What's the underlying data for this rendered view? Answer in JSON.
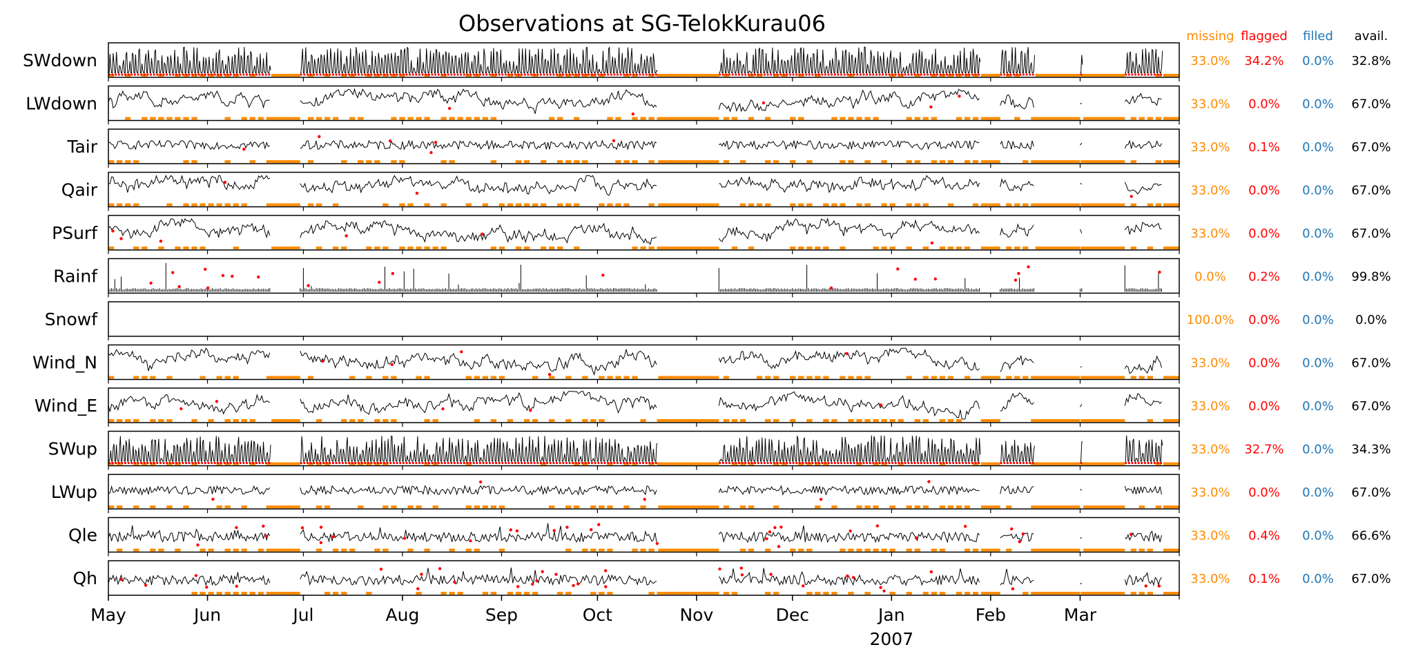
{
  "chart_data": {
    "type": "line",
    "title": "Observations at SG-TelokKurau06",
    "x_axis": {
      "tick_labels": [
        "May",
        "Jun",
        "Jul",
        "Aug",
        "Sep",
        "Oct",
        "Nov",
        "Dec",
        "Jan",
        "Feb",
        "Mar"
      ],
      "year_label": "2007",
      "start": "2006-05-01",
      "end": "2007-04-01"
    },
    "column_headers": {
      "missing": "missing",
      "flagged": "flagged",
      "filled": "filled",
      "avail": "avail."
    },
    "colors": {
      "line": "#000000",
      "missing": "#ff8c00",
      "flagged": "#ff0000",
      "filled": "#1f77b4",
      "avail": "#000000"
    },
    "gaps": [
      {
        "start": "2006-06-21",
        "end": "2006-06-30"
      },
      {
        "start": "2006-10-20",
        "end": "2006-11-08"
      },
      {
        "start": "2007-01-29",
        "end": "2007-02-04"
      },
      {
        "start": "2007-02-15",
        "end": "2007-03-01"
      },
      {
        "start": "2007-03-02",
        "end": "2007-03-15"
      },
      {
        "start": "2007-03-27",
        "end": "2007-04-01"
      }
    ],
    "series": [
      {
        "name": "SWdown",
        "style": "diurnal",
        "missing": "33.0%",
        "flagged": "34.2%",
        "filled": "0.0%",
        "avail": "32.8%"
      },
      {
        "name": "LWdown",
        "style": "noisy",
        "missing": "33.0%",
        "flagged": "0.0%",
        "filled": "0.0%",
        "avail": "67.0%"
      },
      {
        "name": "Tair",
        "style": "oscillating",
        "missing": "33.0%",
        "flagged": "0.1%",
        "filled": "0.0%",
        "avail": "67.0%"
      },
      {
        "name": "Qair",
        "style": "noisy",
        "missing": "33.0%",
        "flagged": "0.0%",
        "filled": "0.0%",
        "avail": "67.0%"
      },
      {
        "name": "PSurf",
        "style": "noisy",
        "missing": "33.0%",
        "flagged": "0.0%",
        "filled": "0.0%",
        "avail": "67.0%"
      },
      {
        "name": "Rainf",
        "style": "rain",
        "missing": "0.0%",
        "flagged": "0.2%",
        "filled": "0.0%",
        "avail": "99.8%"
      },
      {
        "name": "Snowf",
        "style": "empty",
        "missing": "100.0%",
        "flagged": "0.0%",
        "filled": "0.0%",
        "avail": "0.0%"
      },
      {
        "name": "Wind_N",
        "style": "noisy",
        "missing": "33.0%",
        "flagged": "0.0%",
        "filled": "0.0%",
        "avail": "67.0%"
      },
      {
        "name": "Wind_E",
        "style": "noisy",
        "missing": "33.0%",
        "flagged": "0.0%",
        "filled": "0.0%",
        "avail": "67.0%"
      },
      {
        "name": "SWup",
        "style": "diurnal",
        "missing": "33.0%",
        "flagged": "32.7%",
        "filled": "0.0%",
        "avail": "34.3%"
      },
      {
        "name": "LWup",
        "style": "oscillating",
        "missing": "33.0%",
        "flagged": "0.0%",
        "filled": "0.0%",
        "avail": "67.0%"
      },
      {
        "name": "Qle",
        "style": "spiky",
        "missing": "33.0%",
        "flagged": "0.4%",
        "filled": "0.0%",
        "avail": "66.6%"
      },
      {
        "name": "Qh",
        "style": "spiky",
        "missing": "33.0%",
        "flagged": "0.1%",
        "filled": "0.0%",
        "avail": "67.0%"
      }
    ]
  }
}
